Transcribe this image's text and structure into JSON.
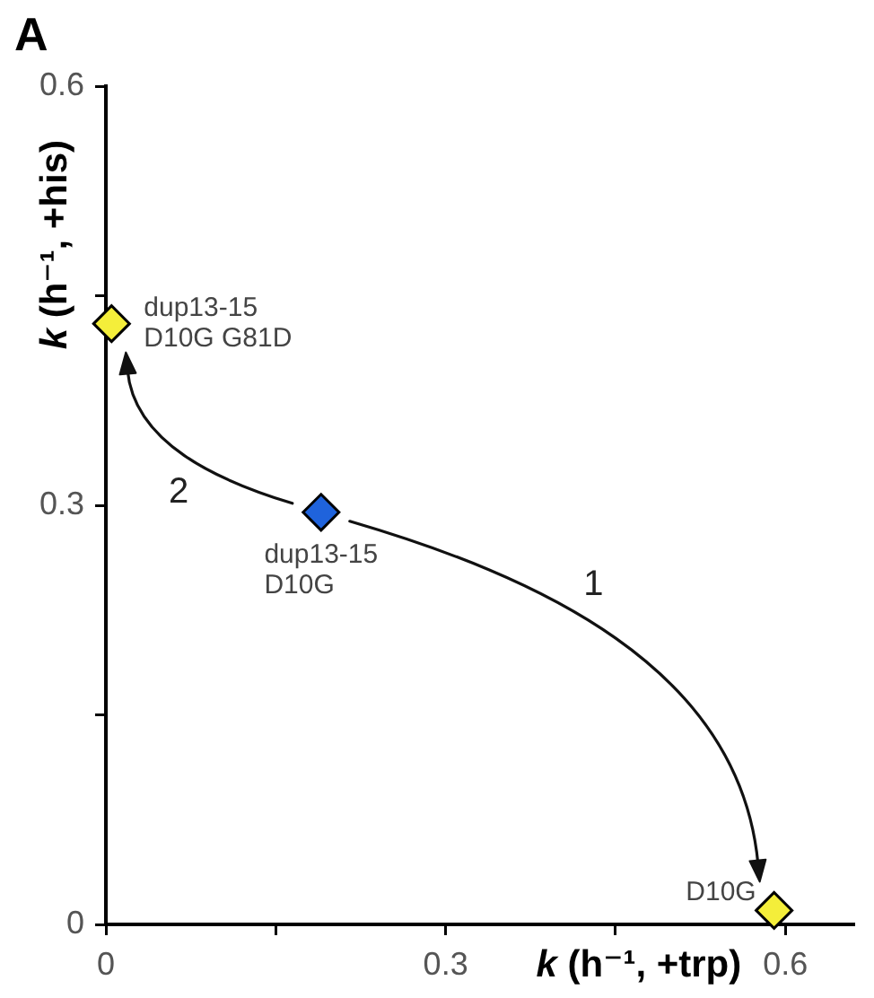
{
  "chart_data": {
    "type": "scatter",
    "title": "A",
    "xlabel": "k (h⁻¹, +trp)",
    "ylabel": "k (h⁻¹, +his)",
    "x": [
      0.005,
      0.19,
      0.59
    ],
    "values": [
      0.43,
      0.295,
      0.01
    ],
    "colors": [
      "#f4ee3a",
      "#1f63dc",
      "#f4ee3a"
    ],
    "marker": "diamond",
    "xlim": [
      0,
      0.66
    ],
    "ylim": [
      0,
      0.6
    ],
    "xticks": [
      0,
      {
        "value": 0.15,
        "label": null
      },
      0.3,
      {
        "value": 0.45,
        "label": null
      },
      0.6
    ],
    "yticks": [
      0,
      {
        "value": 0.15,
        "label": null
      },
      0.3,
      {
        "value": 0.45,
        "label": null
      },
      0.6
    ],
    "grid": false,
    "legend": false,
    "annotations": [
      {
        "text": "dup13-15\nD10G G81D",
        "x": 0.005,
        "y": 0.43
      },
      {
        "text": "dup13-15\nD10G",
        "x": 0.19,
        "y": 0.295
      },
      {
        "text": "D10G",
        "x": 0.59,
        "y": 0.01
      },
      "1",
      "2"
    ]
  }
}
